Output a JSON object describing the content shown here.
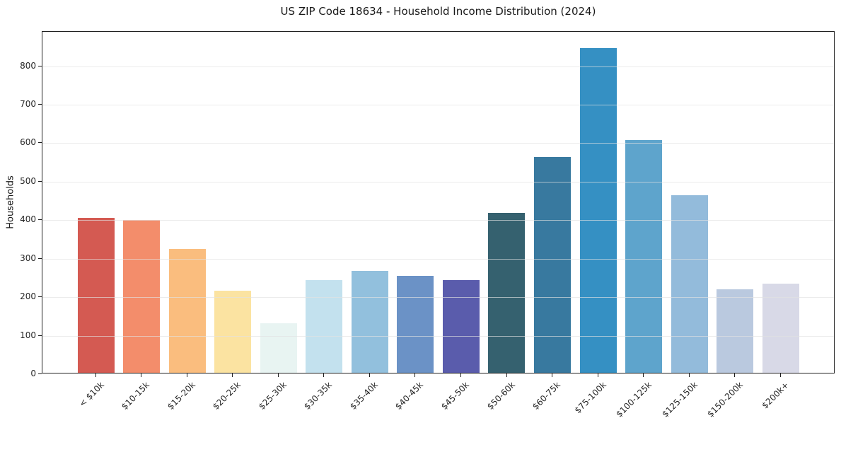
{
  "chart_data": {
    "type": "bar",
    "title": "US ZIP Code 18634 - Household Income Distribution (2024)",
    "xlabel": "",
    "ylabel": "Households",
    "categories": [
      "< $10k",
      "$10-15k",
      "$15-20k",
      "$20-25k",
      "$25-30k",
      "$30-35k",
      "$35-40k",
      "$40-45k",
      "$45-50k",
      "$50-60k",
      "$60-75k",
      "$75-100k",
      "$100-125k",
      "$125-150k",
      "$150-200k",
      "$200k+"
    ],
    "values": [
      402,
      396,
      321,
      213,
      129,
      241,
      265,
      251,
      240,
      416,
      560,
      843,
      604,
      462,
      216,
      231
    ],
    "bar_colors": [
      "#d45a52",
      "#f38d6b",
      "#fabd7e",
      "#fbe3a1",
      "#e8f4f2",
      "#c3e1ee",
      "#92c0dd",
      "#6b92c6",
      "#5a5cac",
      "#35616f",
      "#38799f",
      "#3590c3",
      "#5ea4cc",
      "#93bbdb",
      "#bac9df",
      "#d8d9e7"
    ],
    "yticks": [
      0,
      100,
      200,
      300,
      400,
      500,
      600,
      700,
      800
    ],
    "ylim": [
      0,
      889
    ],
    "grid": "horizontal",
    "legend": "none",
    "x_tick_rotation_deg": 45
  },
  "colors": {
    "background": "#ffffff",
    "grid": "#e2e2e2",
    "frame": "#1f1f1f",
    "text": "#262626"
  }
}
